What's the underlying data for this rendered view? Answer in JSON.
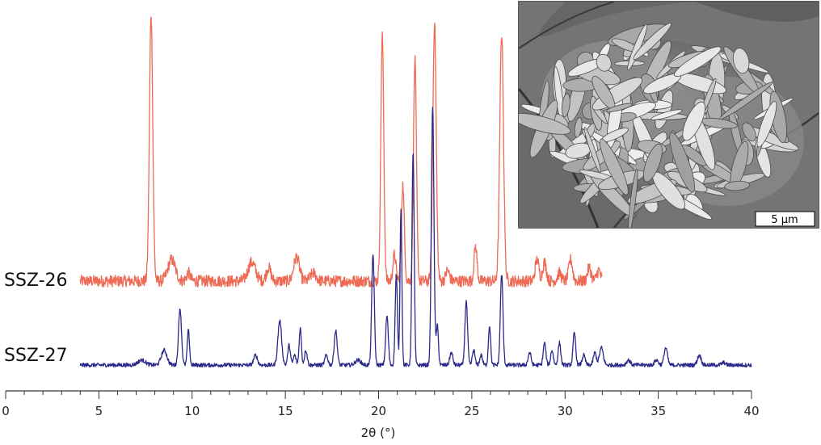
{
  "chart_data": {
    "type": "line",
    "title": "",
    "xlabel": "2θ (°)",
    "ylabel": "",
    "xlim": [
      0,
      40
    ],
    "xticks": [
      0,
      5,
      10,
      15,
      20,
      25,
      30,
      35,
      40
    ],
    "grid": false,
    "y_units": "relative intensity (stacked, arbitrary units)",
    "series": [
      {
        "name": "SSZ-26",
        "color": "#ee6a55",
        "x_range": [
          4,
          32
        ],
        "baseline": 0.0,
        "noise": 0.022,
        "peaks": [
          {
            "x": 7.8,
            "h": 1.0,
            "w": 0.09
          },
          {
            "x": 8.9,
            "h": 0.08,
            "w": 0.2
          },
          {
            "x": 9.8,
            "h": 0.03,
            "w": 0.1
          },
          {
            "x": 13.2,
            "h": 0.07,
            "w": 0.2
          },
          {
            "x": 14.1,
            "h": 0.05,
            "w": 0.12
          },
          {
            "x": 15.6,
            "h": 0.09,
            "w": 0.15
          },
          {
            "x": 16.5,
            "h": 0.03,
            "w": 0.15
          },
          {
            "x": 20.2,
            "h": 0.92,
            "w": 0.08
          },
          {
            "x": 20.85,
            "h": 0.1,
            "w": 0.08
          },
          {
            "x": 21.3,
            "h": 0.36,
            "w": 0.08
          },
          {
            "x": 21.95,
            "h": 0.83,
            "w": 0.08
          },
          {
            "x": 23.0,
            "h": 0.97,
            "w": 0.09
          },
          {
            "x": 23.7,
            "h": 0.04,
            "w": 0.1
          },
          {
            "x": 25.2,
            "h": 0.13,
            "w": 0.08
          },
          {
            "x": 26.6,
            "h": 0.93,
            "w": 0.1
          },
          {
            "x": 28.5,
            "h": 0.08,
            "w": 0.1
          },
          {
            "x": 28.9,
            "h": 0.07,
            "w": 0.1
          },
          {
            "x": 29.7,
            "h": 0.03,
            "w": 0.1
          },
          {
            "x": 30.3,
            "h": 0.08,
            "w": 0.1
          },
          {
            "x": 31.3,
            "h": 0.05,
            "w": 0.1
          },
          {
            "x": 31.8,
            "h": 0.04,
            "w": 0.1
          }
        ]
      },
      {
        "name": "SSZ-27",
        "color": "#2b2a8a",
        "x_range": [
          4,
          40
        ],
        "baseline": 0.0,
        "noise": 0.008,
        "peaks": [
          {
            "x": 7.3,
            "h": 0.02,
            "w": 0.2
          },
          {
            "x": 8.5,
            "h": 0.06,
            "w": 0.15
          },
          {
            "x": 9.35,
            "h": 0.23,
            "w": 0.08
          },
          {
            "x": 9.8,
            "h": 0.14,
            "w": 0.06
          },
          {
            "x": 13.4,
            "h": 0.04,
            "w": 0.1
          },
          {
            "x": 14.7,
            "h": 0.18,
            "w": 0.1
          },
          {
            "x": 15.2,
            "h": 0.08,
            "w": 0.07
          },
          {
            "x": 15.5,
            "h": 0.04,
            "w": 0.07
          },
          {
            "x": 15.8,
            "h": 0.15,
            "w": 0.06
          },
          {
            "x": 16.1,
            "h": 0.06,
            "w": 0.07
          },
          {
            "x": 17.2,
            "h": 0.04,
            "w": 0.08
          },
          {
            "x": 17.7,
            "h": 0.14,
            "w": 0.08
          },
          {
            "x": 18.9,
            "h": 0.02,
            "w": 0.15
          },
          {
            "x": 19.7,
            "h": 0.45,
            "w": 0.07
          },
          {
            "x": 20.45,
            "h": 0.2,
            "w": 0.07
          },
          {
            "x": 20.95,
            "h": 0.37,
            "w": 0.06
          },
          {
            "x": 21.2,
            "h": 0.64,
            "w": 0.05
          },
          {
            "x": 21.85,
            "h": 0.87,
            "w": 0.06
          },
          {
            "x": 22.9,
            "h": 1.05,
            "w": 0.07
          },
          {
            "x": 23.15,
            "h": 0.16,
            "w": 0.06
          },
          {
            "x": 23.9,
            "h": 0.05,
            "w": 0.08
          },
          {
            "x": 24.7,
            "h": 0.26,
            "w": 0.07
          },
          {
            "x": 25.1,
            "h": 0.06,
            "w": 0.07
          },
          {
            "x": 25.5,
            "h": 0.04,
            "w": 0.07
          },
          {
            "x": 25.95,
            "h": 0.16,
            "w": 0.06
          },
          {
            "x": 26.6,
            "h": 0.37,
            "w": 0.07
          },
          {
            "x": 28.1,
            "h": 0.05,
            "w": 0.08
          },
          {
            "x": 28.9,
            "h": 0.09,
            "w": 0.07
          },
          {
            "x": 29.3,
            "h": 0.06,
            "w": 0.07
          },
          {
            "x": 29.7,
            "h": 0.09,
            "w": 0.07
          },
          {
            "x": 30.5,
            "h": 0.13,
            "w": 0.07
          },
          {
            "x": 31.0,
            "h": 0.04,
            "w": 0.08
          },
          {
            "x": 31.6,
            "h": 0.05,
            "w": 0.08
          },
          {
            "x": 31.95,
            "h": 0.07,
            "w": 0.1
          },
          {
            "x": 33.4,
            "h": 0.02,
            "w": 0.1
          },
          {
            "x": 34.9,
            "h": 0.02,
            "w": 0.1
          },
          {
            "x": 35.4,
            "h": 0.07,
            "w": 0.09
          },
          {
            "x": 37.2,
            "h": 0.04,
            "w": 0.1
          },
          {
            "x": 38.5,
            "h": 0.01,
            "w": 0.1
          }
        ]
      }
    ],
    "inset": {
      "type": "SEM micrograph",
      "scale_bar_label": "5 μm"
    }
  }
}
